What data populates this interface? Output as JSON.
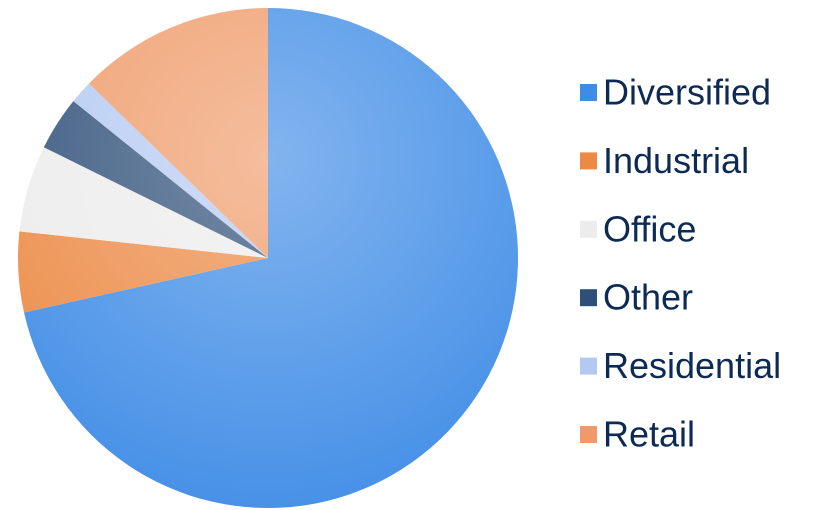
{
  "chart_data": {
    "type": "pie",
    "categories": [
      "Diversified",
      "Industrial",
      "Office",
      "Other",
      "Residential",
      "Retail"
    ],
    "values": [
      71.5,
      5.2,
      5.6,
      3.5,
      1.5,
      12.7
    ],
    "colors": [
      "#3f8ce6",
      "#ec8a45",
      "#ececec",
      "#2e4f78",
      "#b3c9f2",
      "#ef9a68"
    ],
    "legend": "right"
  }
}
